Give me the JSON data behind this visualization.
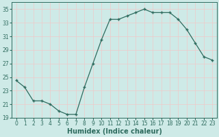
{
  "x": [
    0,
    1,
    2,
    3,
    4,
    5,
    6,
    7,
    8,
    9,
    10,
    11,
    12,
    13,
    14,
    15,
    16,
    17,
    18,
    19,
    20,
    21,
    22,
    23
  ],
  "y": [
    24.5,
    23.5,
    21.5,
    21.5,
    21.0,
    20.0,
    19.5,
    19.5,
    23.5,
    27.0,
    30.5,
    33.5,
    33.5,
    34.0,
    34.5,
    35.0,
    34.5,
    34.5,
    34.5,
    33.5,
    32.0,
    30.0,
    28.0,
    27.5
  ],
  "line_color": "#2e6b5e",
  "marker": "+",
  "markersize": 3.5,
  "linewidth": 0.9,
  "markeredgewidth": 1.0,
  "xlabel": "Humidex (Indice chaleur)",
  "xlim": [
    -0.5,
    23.5
  ],
  "ylim": [
    19,
    36
  ],
  "yticks": [
    19,
    21,
    23,
    25,
    27,
    29,
    31,
    33,
    35
  ],
  "xticks": [
    0,
    1,
    2,
    3,
    4,
    5,
    6,
    7,
    8,
    9,
    10,
    11,
    12,
    13,
    14,
    15,
    16,
    17,
    18,
    19,
    20,
    21,
    22,
    23
  ],
  "bg_color": "#ceeae7",
  "grid_color": "#f0c8c8",
  "grid_linewidth": 0.5,
  "tick_fontsize": 5.5,
  "xlabel_fontsize": 7.0,
  "spine_color": "#2e6b5e"
}
